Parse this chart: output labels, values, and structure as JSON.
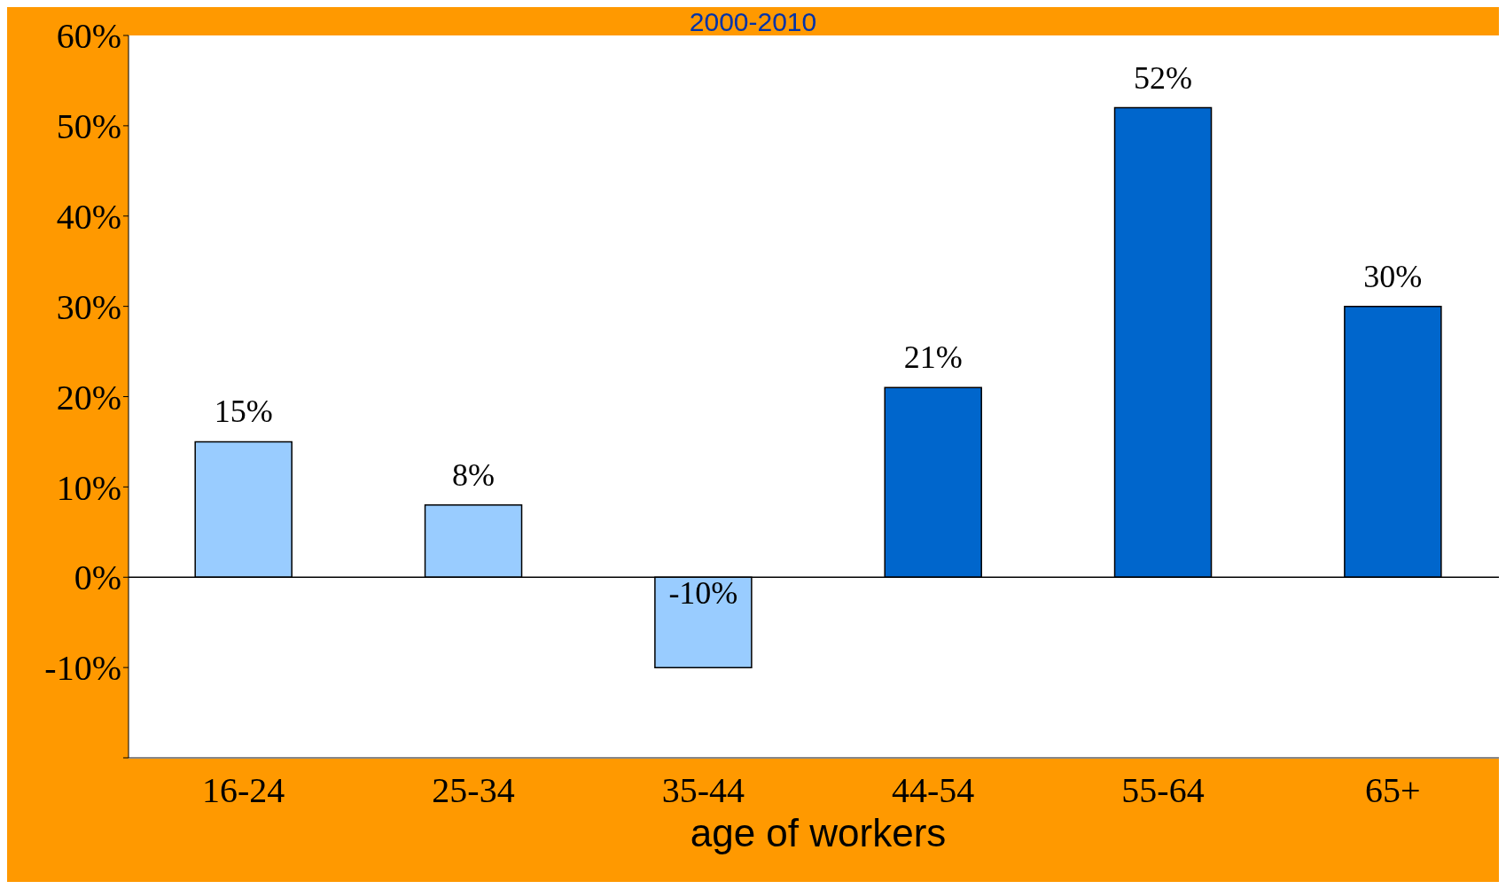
{
  "chart_data": {
    "type": "bar",
    "title": "2000-2010",
    "xlabel": "age of workers",
    "categories": [
      "16-24",
      "25-34",
      "35-44",
      "44-54",
      "55-64",
      "65+"
    ],
    "values": [
      15,
      8,
      -10,
      21,
      52,
      30
    ],
    "colors": [
      "#99ccff",
      "#99ccff",
      "#99ccff",
      "#0066cc",
      "#0066cc",
      "#0066cc"
    ],
    "value_labels": [
      "15%",
      "8%",
      "-10%",
      "21%",
      "52%",
      "30%"
    ],
    "ylim": [
      -20,
      60
    ],
    "yticks": [
      {
        "value": -20,
        "label": null
      },
      {
        "value": -10,
        "label": "-10%"
      },
      {
        "value": 0,
        "label": "0%"
      },
      {
        "value": 10,
        "label": "10%"
      },
      {
        "value": 20,
        "label": "20%"
      },
      {
        "value": 30,
        "label": "30%"
      },
      {
        "value": 40,
        "label": "40%"
      },
      {
        "value": 50,
        "label": "50%"
      },
      {
        "value": 60,
        "label": "60%"
      }
    ],
    "legend": false
  }
}
